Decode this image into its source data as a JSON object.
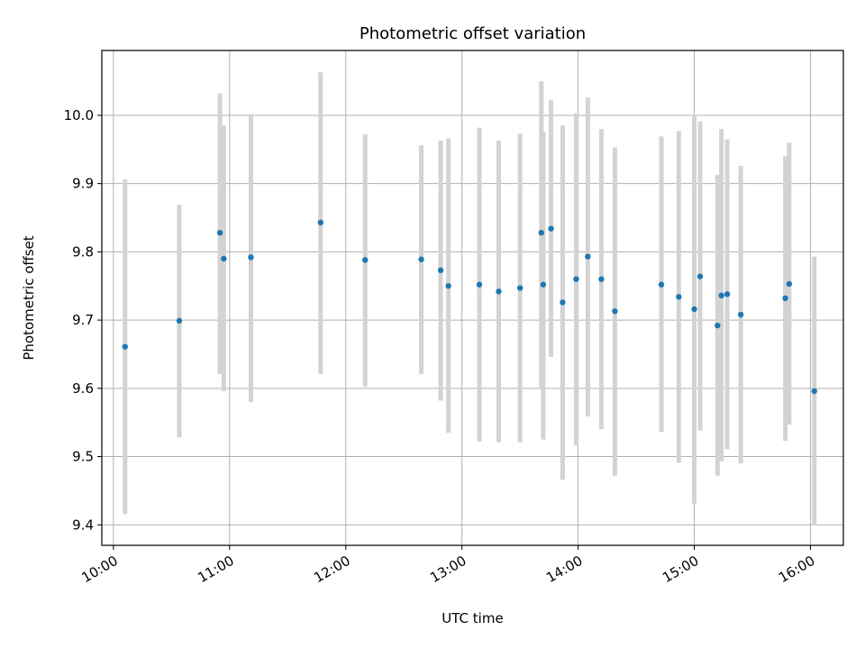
{
  "chart_data": {
    "type": "scatter",
    "title": "Photometric offset variation",
    "xlabel": "UTC time",
    "ylabel": "Photometric offset",
    "xlim": [
      "09:54",
      "16:17"
    ],
    "ylim": [
      9.37,
      10.095
    ],
    "x_ticks": [
      "10:00",
      "11:00",
      "12:00",
      "13:00",
      "14:00",
      "15:00",
      "16:00"
    ],
    "y_ticks": [
      9.4,
      9.5,
      9.6,
      9.7,
      9.8,
      9.9,
      10.0
    ],
    "y_tick_labels": [
      "9.4",
      "9.5",
      "9.6",
      "9.7",
      "9.8",
      "9.9",
      "10.0"
    ],
    "grid": true,
    "colors": {
      "marker": "#1f77b4",
      "errorbar": "#d3d3d3",
      "grid": "#b0b0b0"
    },
    "points": [
      {
        "x": "10:06",
        "y": 9.661,
        "err_low": 9.416,
        "err_high": 9.906
      },
      {
        "x": "10:34",
        "y": 9.699,
        "err_low": 9.528,
        "err_high": 9.869
      },
      {
        "x": "10:55",
        "y": 9.828,
        "err_low": 9.621,
        "err_high": 10.032
      },
      {
        "x": "10:57",
        "y": 9.79,
        "err_low": 9.596,
        "err_high": 9.985
      },
      {
        "x": "11:11",
        "y": 9.792,
        "err_low": 9.58,
        "err_high": 10.002
      },
      {
        "x": "11:47",
        "y": 9.843,
        "err_low": 9.621,
        "err_high": 10.063
      },
      {
        "x": "12:10",
        "y": 9.788,
        "err_low": 9.603,
        "err_high": 9.972
      },
      {
        "x": "12:39",
        "y": 9.789,
        "err_low": 9.621,
        "err_high": 9.956
      },
      {
        "x": "12:49",
        "y": 9.773,
        "err_low": 9.582,
        "err_high": 9.963
      },
      {
        "x": "12:53",
        "y": 9.75,
        "err_low": 9.535,
        "err_high": 9.966
      },
      {
        "x": "13:09",
        "y": 9.752,
        "err_low": 9.522,
        "err_high": 9.982
      },
      {
        "x": "13:19",
        "y": 9.742,
        "err_low": 9.521,
        "err_high": 9.963
      },
      {
        "x": "13:30",
        "y": 9.747,
        "err_low": 9.521,
        "err_high": 9.973
      },
      {
        "x": "13:41",
        "y": 9.828,
        "err_low": 9.601,
        "err_high": 10.05
      },
      {
        "x": "13:42",
        "y": 9.752,
        "err_low": 9.525,
        "err_high": 9.976
      },
      {
        "x": "13:46",
        "y": 9.834,
        "err_low": 9.646,
        "err_high": 10.022
      },
      {
        "x": "13:52",
        "y": 9.726,
        "err_low": 9.466,
        "err_high": 9.985
      },
      {
        "x": "13:59",
        "y": 9.76,
        "err_low": 9.516,
        "err_high": 10.003
      },
      {
        "x": "14:05",
        "y": 9.793,
        "err_low": 9.559,
        "err_high": 10.026
      },
      {
        "x": "14:12",
        "y": 9.76,
        "err_low": 9.54,
        "err_high": 9.98
      },
      {
        "x": "14:19",
        "y": 9.713,
        "err_low": 9.472,
        "err_high": 9.953
      },
      {
        "x": "14:43",
        "y": 9.752,
        "err_low": 9.536,
        "err_high": 9.969
      },
      {
        "x": "14:52",
        "y": 9.734,
        "err_low": 9.491,
        "err_high": 9.977
      },
      {
        "x": "15:00",
        "y": 9.716,
        "err_low": 9.431,
        "err_high": 10.001
      },
      {
        "x": "15:03",
        "y": 9.764,
        "err_low": 9.538,
        "err_high": 9.991
      },
      {
        "x": "15:12",
        "y": 9.692,
        "err_low": 9.472,
        "err_high": 9.913
      },
      {
        "x": "15:14",
        "y": 9.736,
        "err_low": 9.493,
        "err_high": 9.98
      },
      {
        "x": "15:17",
        "y": 9.738,
        "err_low": 9.511,
        "err_high": 9.965
      },
      {
        "x": "15:24",
        "y": 9.708,
        "err_low": 9.49,
        "err_high": 9.926
      },
      {
        "x": "15:47",
        "y": 9.732,
        "err_low": 9.523,
        "err_high": 9.94
      },
      {
        "x": "15:49",
        "y": 9.753,
        "err_low": 9.547,
        "err_high": 9.96
      },
      {
        "x": "16:02",
        "y": 9.596,
        "err_low": 9.399,
        "err_high": 9.793
      }
    ]
  }
}
